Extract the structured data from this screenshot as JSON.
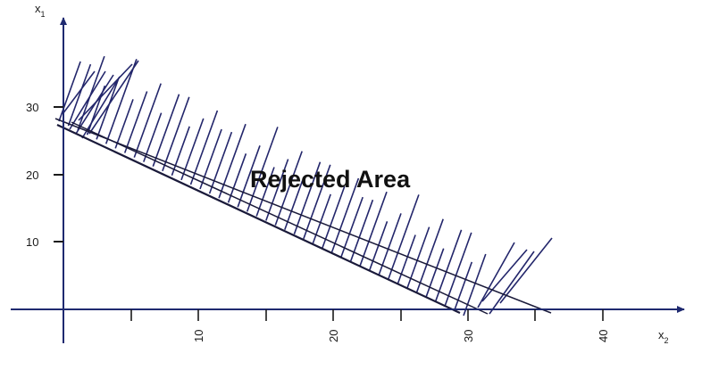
{
  "diagram": {
    "area_label": "Rejected Area",
    "y_axis": {
      "name": "x",
      "subscript": "1",
      "tick_labels": [
        "10",
        "20",
        "30"
      ]
    },
    "x_axis": {
      "name": "x",
      "subscript": "2",
      "tick_labels": [
        "10",
        "20",
        "30",
        "40"
      ]
    },
    "colors": {
      "axis": "#1f2a70",
      "hatch": "#23266b",
      "line": "#1a1a3a"
    }
  }
}
